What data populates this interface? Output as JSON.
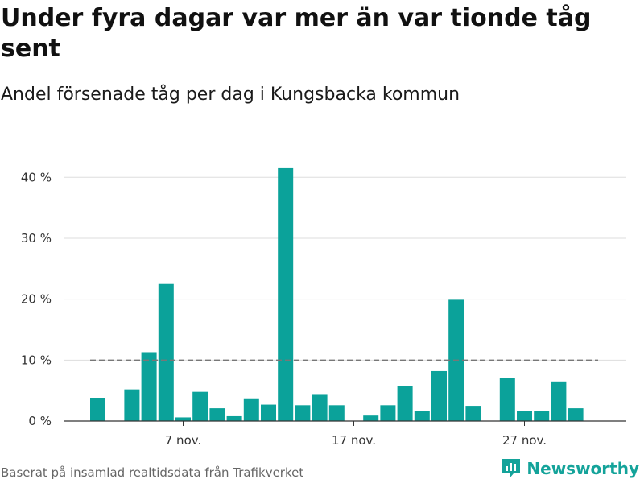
{
  "title": "Under fyra dagar var mer än var tionde tåg sent",
  "subtitle": "Andel försenade tåg per dag i Kungsbacka kommun",
  "footer": "Baserat på insamlad realtidsdata från Trafikverket",
  "brand": "Newsworthy",
  "colors": {
    "bar": "#0ba29a",
    "reference": "#777777",
    "grid": "#dddddd",
    "brand": "#14a39a"
  },
  "chart_data": {
    "type": "bar",
    "title": "Under fyra dagar var mer än var tionde tåg sent",
    "subtitle": "Andel försenade tåg per dag i Kungsbacka kommun",
    "categories": [
      "2 nov.",
      "3 nov.",
      "4 nov.",
      "5 nov.",
      "6 nov.",
      "7 nov.",
      "8 nov.",
      "9 nov.",
      "10 nov.",
      "11 nov.",
      "12 nov.",
      "13 nov.",
      "14 nov.",
      "15 nov.",
      "16 nov.",
      "17 nov.",
      "18 nov.",
      "19 nov.",
      "20 nov.",
      "21 nov.",
      "22 nov.",
      "23 nov.",
      "24 nov.",
      "25 nov.",
      "26 nov.",
      "27 nov.",
      "28 nov.",
      "29 nov.",
      "30 nov."
    ],
    "values": [
      3.7,
      null,
      5.2,
      11.3,
      22.5,
      0.6,
      4.8,
      2.1,
      0.8,
      3.6,
      2.7,
      41.5,
      2.6,
      4.3,
      2.6,
      null,
      0.9,
      2.6,
      5.8,
      1.6,
      8.2,
      19.9,
      2.5,
      null,
      7.1,
      1.6,
      1.6,
      6.5,
      2.1
    ],
    "x_tick_labels": [
      "7 nov.",
      "17 nov.",
      "27 nov."
    ],
    "x_tick_categories": [
      "7 nov.",
      "17 nov.",
      "27 nov."
    ],
    "y_ticks": [
      0,
      10,
      20,
      30,
      40
    ],
    "y_tick_labels": [
      "0 %",
      "10 %",
      "20 %",
      "30 %",
      "40 %"
    ],
    "ylim": [
      0,
      44
    ],
    "reference_line": 10,
    "grid": true,
    "xlabel": "",
    "ylabel": ""
  }
}
